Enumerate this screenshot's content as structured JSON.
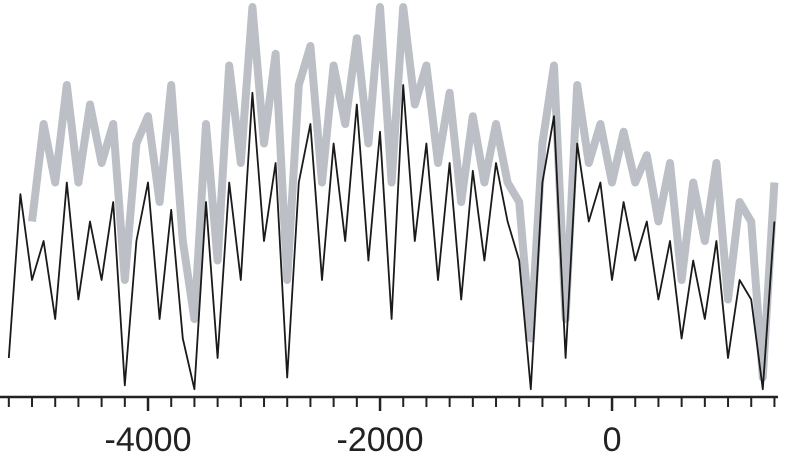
{
  "chart_data": {
    "type": "line",
    "x": [
      -5200,
      -5100,
      -5000,
      -4900,
      -4800,
      -4700,
      -4600,
      -4500,
      -4400,
      -4300,
      -4200,
      -4100,
      -4000,
      -3900,
      -3800,
      -3700,
      -3600,
      -3500,
      -3400,
      -3300,
      -3200,
      -3100,
      -3000,
      -2900,
      -2800,
      -2700,
      -2600,
      -2500,
      -2400,
      -2300,
      -2200,
      -2100,
      -2000,
      -1900,
      -1800,
      -1700,
      -1600,
      -1500,
      -1400,
      -1300,
      -1200,
      -1100,
      -1000,
      -900,
      -800,
      -700,
      -600,
      -500,
      -400,
      -300,
      -200,
      -100,
      0,
      100,
      200,
      300,
      400,
      500,
      600,
      700,
      800,
      900,
      1000,
      1100,
      1200,
      1300,
      1400
    ],
    "series": [
      {
        "color": "#bcc0c6",
        "width": 8,
        "values": [
          null,
          null,
          45,
          70,
          55,
          80,
          55,
          75,
          60,
          70,
          30,
          65,
          72,
          50,
          80,
          40,
          20,
          70,
          35,
          85,
          60,
          100,
          65,
          88,
          30,
          80,
          90,
          55,
          85,
          70,
          92,
          65,
          100,
          55,
          100,
          75,
          85,
          60,
          78,
          50,
          72,
          55,
          70,
          55,
          50,
          15,
          65,
          85,
          20,
          80,
          60,
          70,
          55,
          68,
          55,
          62,
          45,
          60,
          30,
          55,
          40,
          60,
          25,
          50,
          45,
          5,
          55
        ]
      },
      {
        "color": "#1a1a1a",
        "width": 1.8,
        "values": [
          10,
          52,
          30,
          40,
          20,
          55,
          25,
          45,
          30,
          50,
          3,
          40,
          55,
          20,
          48,
          15,
          2,
          50,
          10,
          55,
          30,
          78,
          40,
          60,
          5,
          55,
          70,
          30,
          65,
          40,
          75,
          35,
          68,
          20,
          80,
          40,
          65,
          30,
          60,
          25,
          58,
          35,
          60,
          45,
          35,
          2,
          55,
          72,
          10,
          65,
          45,
          55,
          30,
          50,
          35,
          45,
          25,
          40,
          15,
          35,
          20,
          40,
          10,
          30,
          25,
          2,
          45
        ]
      }
    ],
    "xlim": [
      -5276,
      1491
    ],
    "ylim": [
      0,
      100
    ],
    "xticks": [
      -4000,
      -2000,
      0
    ],
    "xminorticks": [
      -5200,
      -5000,
      -4800,
      -4600,
      -4400,
      -4200,
      -3800,
      -3600,
      -3400,
      -3200,
      -3000,
      -2800,
      -2600,
      -2400,
      -2200,
      -1800,
      -1600,
      -1400,
      -1200,
      -1000,
      -800,
      -600,
      -400,
      -200,
      200,
      400,
      600,
      800,
      1000,
      1200,
      1400
    ]
  }
}
